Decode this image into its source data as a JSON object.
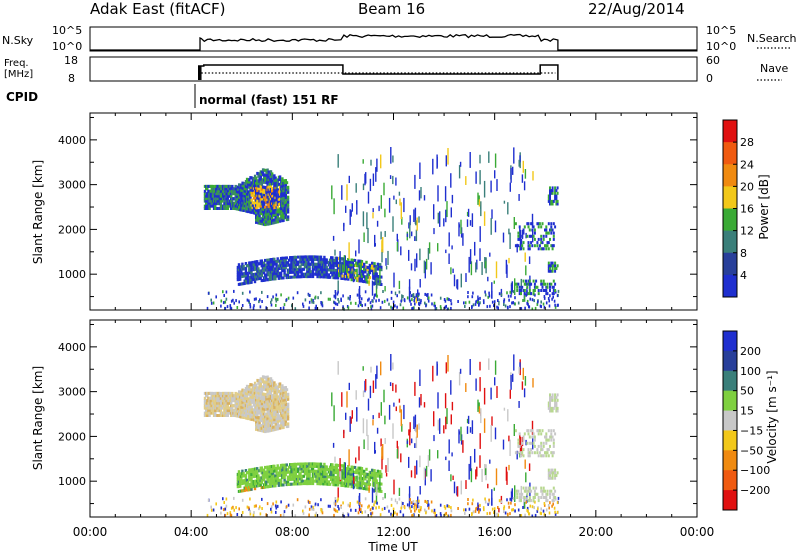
{
  "header": {
    "station": "Adak East (fitACF)",
    "beam": "Beam 16",
    "date": "22/Aug/2014"
  },
  "nsky_panel": {
    "left_label": "N.Sky",
    "right_label": "N.Search",
    "left_ticks": [
      "10^5",
      "10^0"
    ],
    "right_ticks": [
      "10^5",
      "10^0"
    ]
  },
  "freq_panel": {
    "left_label_1": "Freq.",
    "left_label_2": "[MHz]",
    "right_label": "Nave",
    "left_ticks": [
      "18",
      "8"
    ],
    "right_ticks": [
      "60",
      "0"
    ]
  },
  "cpid": {
    "label": "CPID",
    "mode": "normal (fast) 151 RF"
  },
  "colors": {
    "blue": "#1f2fcf",
    "green": "#3aaa35",
    "orange": "#f08a10",
    "red": "#e01010"
  },
  "chart_data": [
    {
      "type": "heatmap",
      "name": "power",
      "ylabel": "Slant Range [km]",
      "y_ticks": [
        "4000",
        "3000",
        "2000",
        "1000"
      ],
      "y_tick_values": [
        4000,
        3000,
        2000,
        1000
      ],
      "ylim": [
        200,
        4600
      ],
      "xlim": [
        0,
        24
      ],
      "colorbar_label": "Power [dB]",
      "colorbar_ticks": [
        "28",
        "24",
        "20",
        "16",
        "12",
        "8",
        "4"
      ],
      "colorbar_colors": [
        "#e01010",
        "#f05a10",
        "#f08a10",
        "#f2c81a",
        "#3aaa35",
        "#3a7f7a",
        "#283f9a",
        "#1f2fcf"
      ],
      "echo_regions": [
        {
          "t_start": 4.4,
          "t_end": 7.8,
          "r_min": 2300,
          "r_max": 3300,
          "level": "mixed"
        },
        {
          "t_start": 5.8,
          "t_end": 11.5,
          "r_min": 700,
          "r_max": 1400,
          "level": "mixed"
        },
        {
          "t_start": 9.5,
          "t_end": 17.5,
          "r_min": 300,
          "r_max": 3500,
          "level": "sparse"
        },
        {
          "t_start": 16.5,
          "t_end": 18.5,
          "r_min": 600,
          "r_max": 3000,
          "level": "sparse"
        }
      ]
    },
    {
      "type": "heatmap",
      "name": "velocity",
      "ylabel": "Slant Range [km]",
      "y_ticks": [
        "4000",
        "3000",
        "2000",
        "1000"
      ],
      "y_tick_values": [
        4000,
        3000,
        2000,
        1000
      ],
      "ylim": [
        200,
        4600
      ],
      "xlim": [
        0,
        24
      ],
      "colorbar_label": "Velocity [m s⁻¹]",
      "colorbar_ticks": [
        "200",
        "100",
        "50",
        "15",
        "−15",
        "−50",
        "−100",
        "−200"
      ],
      "colorbar_colors": [
        "#1f2fcf",
        "#283f9a",
        "#3a7f7a",
        "#7fd040",
        "#c8c8c8",
        "#f2c81a",
        "#f08a10",
        "#f05a10",
        "#e01010"
      ],
      "echo_regions": [
        {
          "t_start": 4.4,
          "t_end": 7.8,
          "r_min": 2300,
          "r_max": 3300,
          "level": "grey-tan"
        },
        {
          "t_start": 5.8,
          "t_end": 11.5,
          "r_min": 700,
          "r_max": 1400,
          "level": "green"
        },
        {
          "t_start": 9.5,
          "t_end": 17.5,
          "r_min": 300,
          "r_max": 3500,
          "level": "sparse"
        },
        {
          "t_start": 16.5,
          "t_end": 18.5,
          "r_min": 600,
          "r_max": 3000,
          "level": "grey"
        }
      ]
    }
  ],
  "x_axis": {
    "label": "Time UT",
    "ticks": [
      "00:00",
      "04:00",
      "08:00",
      "12:00",
      "16:00",
      "20:00",
      "00:00"
    ],
    "tick_values": [
      0,
      4,
      8,
      12,
      16,
      20,
      24
    ]
  }
}
